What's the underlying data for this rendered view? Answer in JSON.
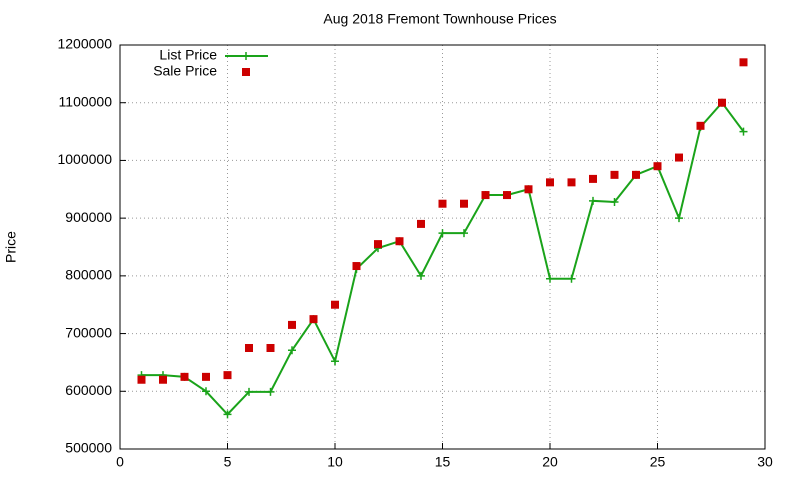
{
  "chart_data": {
    "type": "line",
    "title": "Aug 2018 Fremont Townhouse Prices",
    "y_label": "Price",
    "x": [
      1,
      2,
      3,
      4,
      5,
      6,
      7,
      8,
      9,
      10,
      11,
      12,
      13,
      14,
      15,
      16,
      17,
      18,
      19,
      20,
      21,
      22,
      23,
      24,
      25,
      26,
      27,
      28,
      29
    ],
    "series": [
      {
        "name": "List Price",
        "color": "#1aa31a",
        "style": "line-plus",
        "values": [
          628000,
          628000,
          625000,
          600000,
          560000,
          599000,
          599000,
          671000,
          725000,
          652000,
          812000,
          848000,
          860000,
          800000,
          874000,
          874000,
          940000,
          940000,
          950000,
          795000,
          795000,
          930000,
          928000,
          975000,
          990000,
          900000,
          1058000,
          1100000,
          1050000
        ]
      },
      {
        "name": "Sale Price",
        "color": "#cc0000",
        "style": "square",
        "values": [
          620000,
          620000,
          625000,
          625000,
          628000,
          675000,
          675000,
          715000,
          725000,
          750000,
          817000,
          855000,
          860000,
          890000,
          925000,
          925000,
          940000,
          940000,
          950000,
          962000,
          962000,
          968000,
          975000,
          975000,
          990000,
          1005000,
          1060000,
          1100000,
          1170000
        ]
      }
    ],
    "xlim": [
      0,
      30
    ],
    "xticks": [
      0,
      5,
      10,
      15,
      20,
      25,
      30
    ],
    "ylim": [
      500000,
      1200000
    ],
    "yticks": [
      500000,
      600000,
      700000,
      800000,
      900000,
      1000000,
      1100000,
      1200000
    ],
    "grid": true,
    "legend": "top-left"
  }
}
